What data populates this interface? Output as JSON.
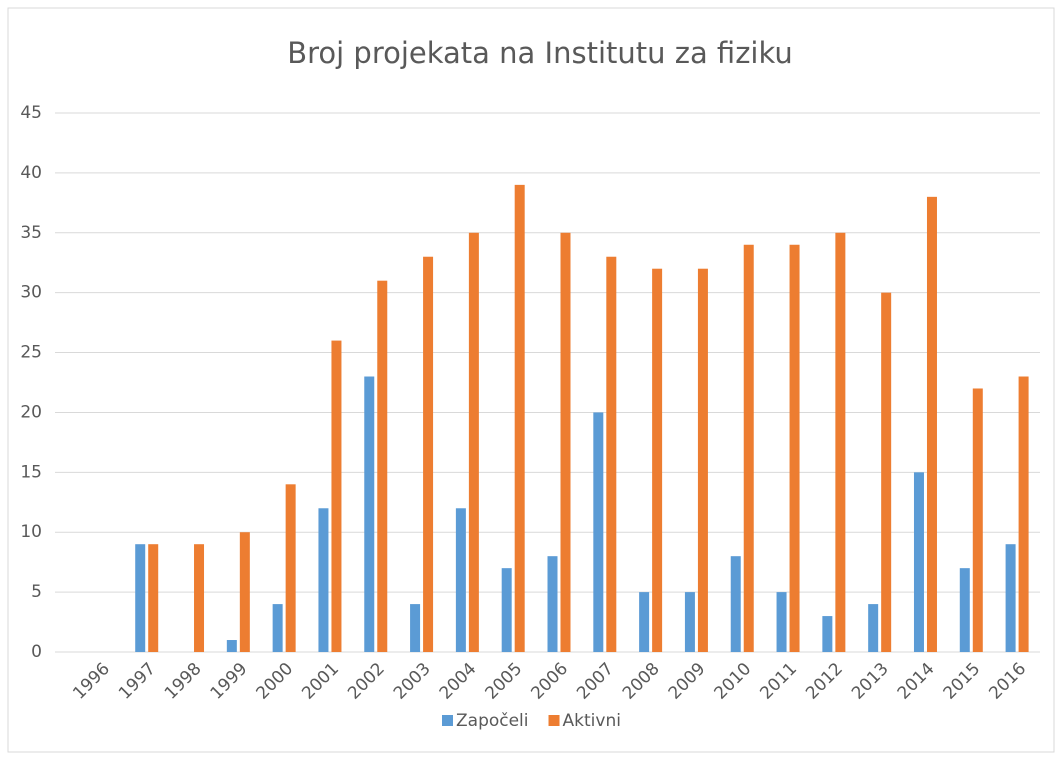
{
  "chart_data": {
    "type": "bar",
    "title": "Broj projekata na Institutu za fiziku",
    "categories": [
      "1996",
      "1997",
      "1998",
      "1999",
      "2000",
      "2001",
      "2002",
      "2003",
      "2004",
      "2005",
      "2006",
      "2007",
      "2008",
      "2009",
      "2010",
      "2011",
      "2012",
      "2013",
      "2014",
      "2015",
      "2016"
    ],
    "series": [
      {
        "name": "Započeli",
        "color": "#5b9bd5",
        "values": [
          null,
          9,
          null,
          1,
          4,
          12,
          23,
          4,
          12,
          7,
          8,
          20,
          5,
          5,
          8,
          5,
          3,
          4,
          15,
          7,
          9
        ]
      },
      {
        "name": "Aktivni",
        "color": "#ed7d31",
        "values": [
          null,
          9,
          9,
          10,
          14,
          26,
          31,
          33,
          35,
          39,
          35,
          33,
          32,
          32,
          34,
          34,
          35,
          30,
          38,
          22,
          23
        ]
      }
    ],
    "ylim": [
      0,
      45
    ],
    "yticks": [
      0,
      5,
      10,
      15,
      20,
      25,
      30,
      35,
      40,
      45
    ],
    "grid": true,
    "legend": "bottom"
  }
}
